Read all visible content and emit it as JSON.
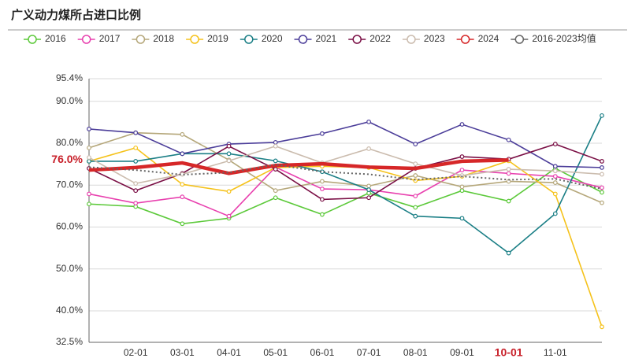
{
  "chart_data": {
    "type": "line",
    "title": "广义动力煤所占进口比例",
    "categories": [
      null,
      "02-01",
      "03-01",
      "04-01",
      "05-01",
      "06-01",
      "07-01",
      "08-01",
      "09-01",
      "10-01",
      "11-01",
      null
    ],
    "highlight": "10-01",
    "highlight_color": "#c8202a",
    "annotation": "76.0%",
    "ylim": [
      32.5,
      95.4
    ],
    "yticks": [
      {
        "value": 32.5,
        "label": "32.5%"
      },
      {
        "value": 40,
        "label": "40.0%"
      },
      {
        "value": 50,
        "label": "50.0%"
      },
      {
        "value": 60,
        "label": "60.0%"
      },
      {
        "value": 70,
        "label": "70.0%"
      },
      {
        "value": 80,
        "label": "80.0%"
      },
      {
        "value": 90,
        "label": "90.0%"
      },
      {
        "value": 95.4,
        "label": "95.4%"
      }
    ],
    "grid": true,
    "legend": "top",
    "series": [
      {
        "name": "2016",
        "color": "#5cc93a",
        "values": [
          65.5,
          64.9,
          60.8,
          62.1,
          67.0,
          63.0,
          68.1,
          64.7,
          68.7,
          66.2,
          74.0,
          68.3
        ]
      },
      {
        "name": "2017",
        "color": "#e83fae",
        "values": [
          67.9,
          65.7,
          67.2,
          62.6,
          74.3,
          69.1,
          68.9,
          67.4,
          73.6,
          72.8,
          72.1,
          69.4
        ]
      },
      {
        "name": "2018",
        "color": "#b5a77a",
        "values": [
          78.9,
          82.5,
          82.1,
          76.0,
          68.7,
          70.9,
          69.8,
          72.3,
          69.6,
          70.9,
          70.6,
          65.8
        ]
      },
      {
        "name": "2019",
        "color": "#f5c21b",
        "values": [
          75.7,
          78.9,
          70.2,
          68.5,
          74.2,
          74.5,
          74.2,
          71.1,
          72.1,
          75.8,
          67.9,
          36.2
        ]
      },
      {
        "name": "2020",
        "color": "#1b7f86",
        "values": [
          75.7,
          75.7,
          77.5,
          77.5,
          75.8,
          73.2,
          68.9,
          62.6,
          62.1,
          53.8,
          63.2,
          86.6
        ]
      },
      {
        "name": "2021",
        "color": "#4b3d99",
        "values": [
          83.4,
          82.5,
          77.5,
          79.8,
          80.2,
          82.3,
          85.1,
          79.8,
          84.5,
          80.8,
          74.5,
          74.2
        ]
      },
      {
        "name": "2022",
        "color": "#7a0f45",
        "values": [
          74.0,
          68.7,
          72.8,
          79.3,
          73.8,
          66.6,
          67.0,
          74.0,
          76.8,
          76.2,
          79.8,
          75.7
        ]
      },
      {
        "name": "2023",
        "color": "#cbbcae",
        "values": [
          76.6,
          70.4,
          72.6,
          75.8,
          79.3,
          75.3,
          78.7,
          75.1,
          72.3,
          73.8,
          73.4,
          72.6
        ]
      },
      {
        "name": "2024",
        "color": "#d62728",
        "values": [
          73.6,
          74.2,
          75.3,
          72.8,
          74.7,
          75.1,
          74.3,
          74.0,
          75.7,
          76.0,
          null,
          null
        ]
      },
      {
        "name": "2016-2023均值",
        "color": "#666666",
        "values": [
          74.3,
          73.6,
          72.5,
          73.0,
          74.9,
          73.2,
          72.6,
          71.3,
          72.1,
          71.3,
          71.5,
          69.1
        ]
      }
    ]
  }
}
